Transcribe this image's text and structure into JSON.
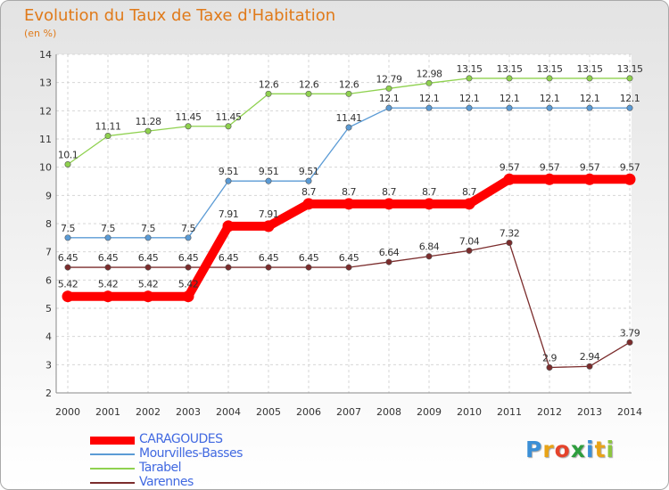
{
  "title": "Evolution du Taux de Taxe d'Habitation",
  "subtitle": "(en %)",
  "logo": {
    "letters": [
      {
        "ch": "P",
        "color": "#3b8fd6"
      },
      {
        "ch": "r",
        "color": "#e8a317"
      },
      {
        "ch": "o",
        "color": "#e5432b"
      },
      {
        "ch": "x",
        "color": "#2e9e3e"
      },
      {
        "ch": "i",
        "color": "#3b8fd6"
      },
      {
        "ch": "t",
        "color": "#e8a317"
      },
      {
        "ch": "i",
        "color": "#8cc63f"
      }
    ]
  },
  "chart_data": {
    "type": "line",
    "x": [
      "2000",
      "2001",
      "2002",
      "2003",
      "2004",
      "2005",
      "2006",
      "2007",
      "2008",
      "2009",
      "2010",
      "2011",
      "2012",
      "2013",
      "2014"
    ],
    "ylim": [
      2,
      14
    ],
    "yticks": [
      2,
      3,
      4,
      5,
      6,
      7,
      8,
      9,
      10,
      11,
      12,
      13,
      14
    ],
    "grid": true,
    "legend_position": "bottom-left",
    "series": [
      {
        "name": "Mourvilles-Basses",
        "color": "#5b9bd5",
        "values": [
          7.5,
          7.5,
          7.5,
          7.5,
          9.51,
          9.51,
          9.51,
          11.41,
          12.1,
          12.1,
          12.1,
          12.1,
          12.1,
          12.1,
          12.1
        ],
        "labels": [
          "7.5",
          "7.5",
          "7.5",
          "7.5",
          "9.51",
          "9.51",
          "9.51",
          "11.41",
          "12.1",
          "12.1",
          "12.1",
          "12.1",
          "12.1",
          "12.1",
          "12.1"
        ]
      },
      {
        "name": "Tarabel",
        "color": "#8fd14f",
        "values": [
          10.1,
          11.11,
          11.28,
          11.45,
          11.45,
          12.6,
          12.6,
          12.6,
          12.79,
          12.98,
          13.15,
          13.15,
          13.15,
          13.15,
          13.15
        ],
        "labels": [
          "10.1",
          "11.11",
          "11.28",
          "11.45",
          "11.45",
          "12.6",
          "12.6",
          "12.6",
          "12.79",
          "12.98",
          "13.15",
          "13.15",
          "13.15",
          "13.15",
          "13.15"
        ]
      },
      {
        "name": "Varennes",
        "color": "#7b2c2c",
        "values": [
          6.45,
          6.45,
          6.45,
          6.45,
          6.45,
          6.45,
          6.45,
          6.45,
          6.64,
          6.84,
          7.04,
          7.32,
          2.9,
          2.94,
          3.79
        ],
        "labels": [
          "6.45",
          "6.45",
          "6.45",
          "6.45",
          "6.45",
          "6.45",
          "6.45",
          "6.45",
          "6.64",
          "6.84",
          "7.04",
          "7.32",
          "2.9",
          "2.94",
          "3.79"
        ]
      },
      {
        "name": "CARAGOUDES",
        "color": "#ff0000",
        "bold": true,
        "values": [
          5.42,
          5.42,
          5.42,
          5.42,
          7.91,
          7.91,
          8.7,
          8.7,
          8.7,
          8.7,
          8.7,
          9.57,
          9.57,
          9.57,
          9.57
        ],
        "labels": [
          "5.42",
          "5.42",
          "5.42",
          "5.42",
          "7.91",
          "7.91",
          "8.7",
          "8.7",
          "8.7",
          "8.7",
          "8.7",
          "9.57",
          "9.57",
          "9.57",
          "9.57"
        ]
      }
    ],
    "legend": [
      "CARAGOUDES",
      "Mourvilles-Basses",
      "Tarabel",
      "Varennes"
    ]
  }
}
